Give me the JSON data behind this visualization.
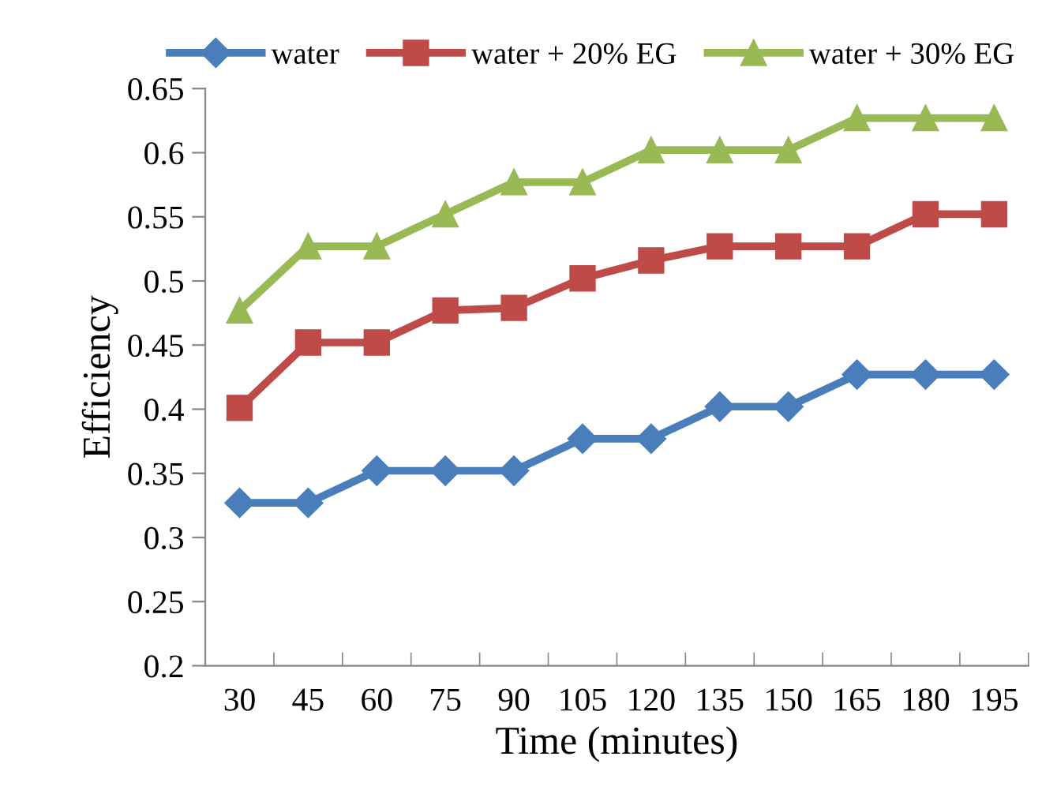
{
  "chart_data": {
    "type": "line",
    "xlabel": "Time (minutes)",
    "ylabel": "Efficiency",
    "categories": [
      "30",
      "45",
      "60",
      "75",
      "90",
      "105",
      "120",
      "135",
      "150",
      "165",
      "180",
      "195"
    ],
    "series": [
      {
        "name": "water",
        "color": "#4a7ebb",
        "marker": "diamond",
        "values": [
          0.327,
          0.327,
          0.352,
          0.352,
          0.352,
          0.377,
          0.377,
          0.402,
          0.402,
          0.427,
          0.427,
          0.427
        ]
      },
      {
        "name": "water + 20% EG",
        "color": "#be4b48",
        "marker": "square",
        "values": [
          0.401,
          0.452,
          0.452,
          0.477,
          0.479,
          0.502,
          0.516,
          0.527,
          0.527,
          0.527,
          0.552,
          0.552
        ]
      },
      {
        "name": "water + 30% EG",
        "color": "#98b954",
        "marker": "triangle",
        "values": [
          0.477,
          0.527,
          0.527,
          0.552,
          0.577,
          0.577,
          0.602,
          0.602,
          0.602,
          0.627,
          0.627,
          0.627
        ]
      }
    ],
    "ylim": [
      0.2,
      0.65
    ],
    "yticks": [
      0.2,
      0.25,
      0.3,
      0.35,
      0.4,
      0.45,
      0.5,
      0.55,
      0.6,
      0.65
    ],
    "grid": false,
    "legend": "top",
    "line_style": "solid"
  }
}
